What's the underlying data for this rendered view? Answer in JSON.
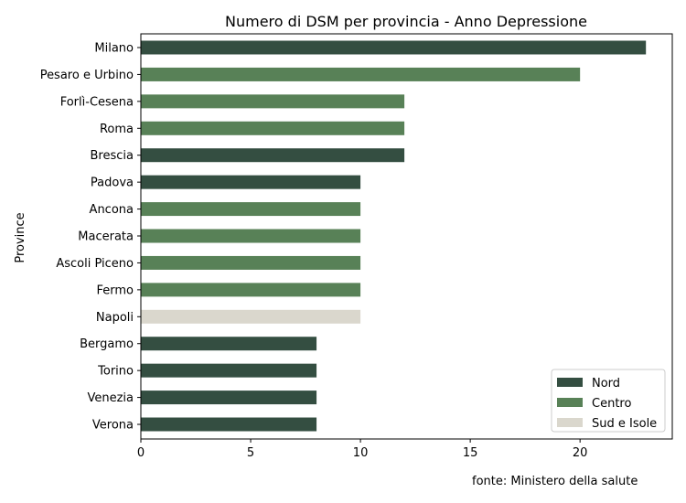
{
  "chart_data": {
    "type": "bar",
    "orientation": "horizontal",
    "title": "Numero di DSM per provincia - Anno Depressione",
    "xlabel": "",
    "ylabel": "Province",
    "xlim": [
      0,
      24.2
    ],
    "xticks": [
      0,
      5,
      10,
      15,
      20
    ],
    "grid": false,
    "legend_position": "lower-right",
    "categories": [
      "Milano",
      "Pesaro e Urbino",
      "Forlì-Cesena",
      "Roma",
      "Brescia",
      "Padova",
      "Ancona",
      "Macerata",
      "Ascoli Piceno",
      "Fermo",
      "Napoli",
      "Bergamo",
      "Torino",
      "Venezia",
      "Verona"
    ],
    "values": [
      23,
      20,
      12,
      12,
      12,
      10,
      10,
      10,
      10,
      10,
      10,
      8,
      8,
      8,
      8
    ],
    "groups": [
      "Nord",
      "Centro",
      "Centro",
      "Centro",
      "Nord",
      "Nord",
      "Centro",
      "Centro",
      "Centro",
      "Centro",
      "Sud e Isole",
      "Nord",
      "Nord",
      "Nord",
      "Nord"
    ],
    "legend": [
      {
        "name": "Nord",
        "color": "#344e41"
      },
      {
        "name": "Centro",
        "color": "#588157"
      },
      {
        "name": "Sud e Isole",
        "color": "#dad7cd"
      }
    ]
  },
  "source_note": "fonte: Ministero della salute"
}
